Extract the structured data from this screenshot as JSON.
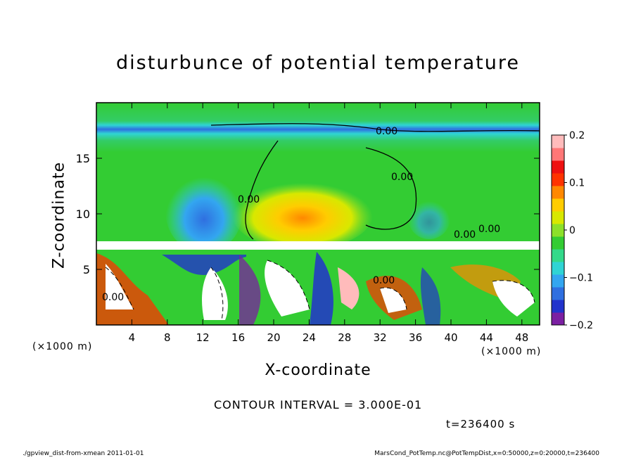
{
  "chart_data": {
    "type": "heatmap",
    "title": "disturbunce of potential temperature",
    "xlabel": "X-coordinate",
    "ylabel": "Z-coordinate",
    "x_unit_label": "(×1000 m)",
    "xlim": [
      0,
      50
    ],
    "ylim": [
      0,
      20
    ],
    "x_ticks": [
      "4",
      "8",
      "12",
      "16",
      "20",
      "24",
      "28",
      "32",
      "36",
      "40",
      "44",
      "48"
    ],
    "y_ticks": [
      "5",
      "10",
      "15"
    ],
    "colorbar": {
      "range": [
        -0.2,
        0.2
      ],
      "tick_labels": [
        "0.2",
        "0.1",
        "0",
        "−0.1",
        "−0.2"
      ],
      "colors": [
        "#7b1fa2",
        "#2233cc",
        "#2f6fe0",
        "#33a6f0",
        "#2fd4d4",
        "#33d98a",
        "#33cc33",
        "#8ce02a",
        "#d8e800",
        "#ffcc00",
        "#ff8800",
        "#ff3300",
        "#ee1111",
        "#ff7777",
        "#ffbbbb"
      ]
    },
    "contour_labels": [
      "0.00",
      "0.00",
      "0.00",
      "0.00",
      "0.00",
      "0.00",
      "0.00"
    ],
    "contour_interval": "CONTOUR INTERVAL = 3.000E-01",
    "time": "t=236400 s"
  },
  "footer": {
    "left": "./gpview_dist-from-xmean  2011-01-01",
    "right": "MarsCond_PotTemp.nc@PotTempDist,x=0:50000,z=0:20000,t=236400"
  }
}
